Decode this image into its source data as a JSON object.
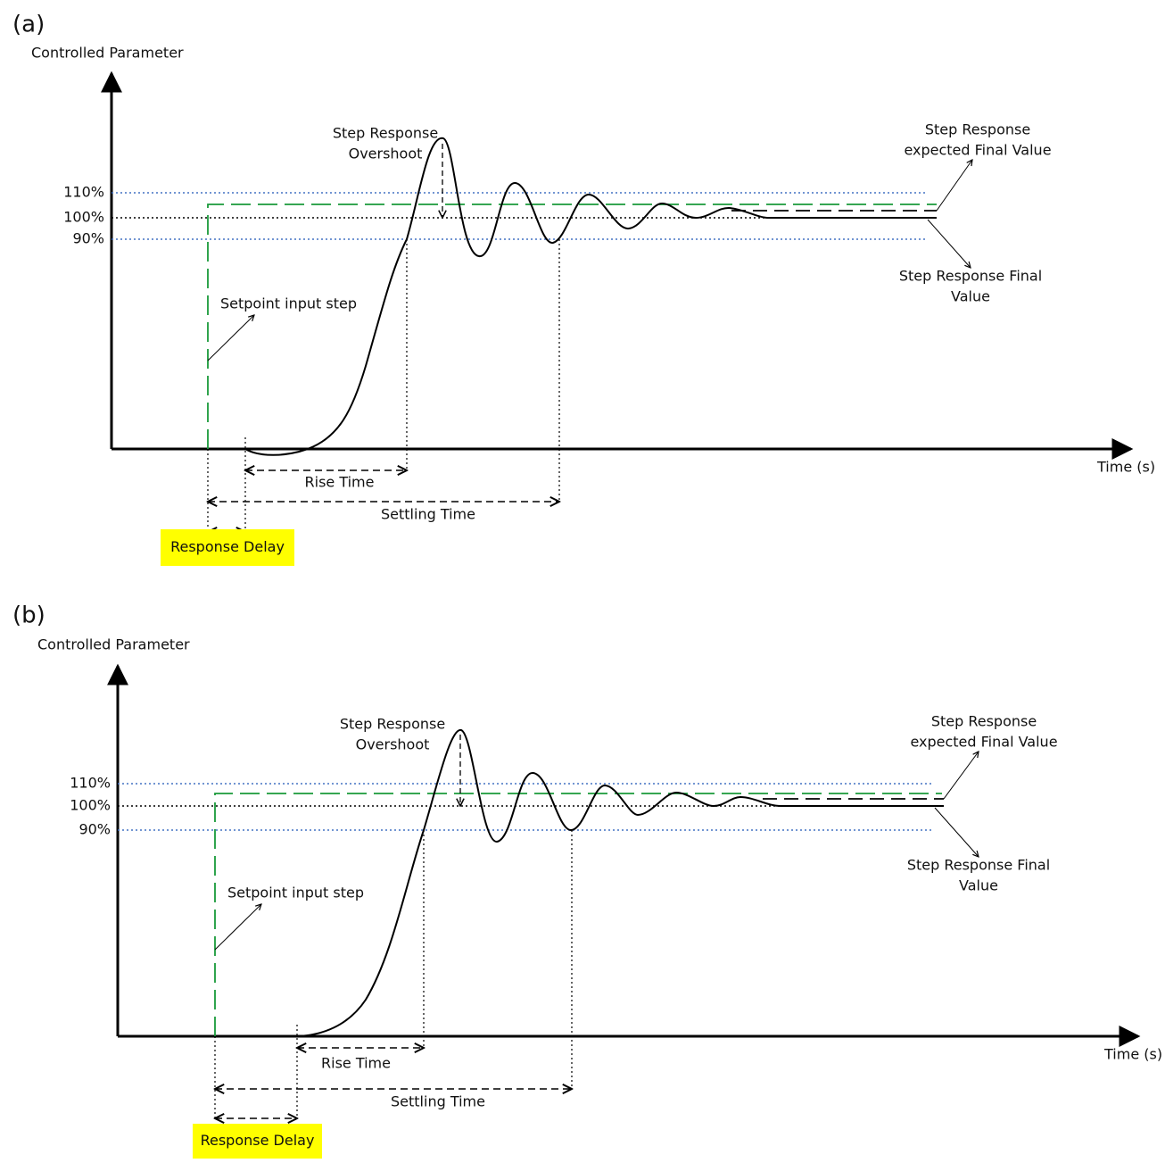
{
  "panels": [
    {
      "label": "(a)",
      "y_axis_label": "Controlled Parameter",
      "x_axis_label": "Time (s)",
      "levels": [
        "110%",
        "100%",
        "90%"
      ],
      "overshoot": [
        "Step Response",
        "Overshoot"
      ],
      "expected_final": [
        "Step Response",
        "expected Final Value"
      ],
      "final_value": [
        "Step Response Final",
        "Value"
      ],
      "setpoint": "Setpoint input step",
      "rise_time": "Rise Time",
      "settling_time": "Settling Time",
      "response_delay": "Response Delay"
    },
    {
      "label": "(b)",
      "y_axis_label": "Controlled Parameter",
      "x_axis_label": "Time (s)",
      "levels": [
        "110%",
        "100%",
        "90%"
      ],
      "overshoot": [
        "Step Response",
        "Overshoot"
      ],
      "expected_final": [
        "Step Response",
        "expected Final Value"
      ],
      "final_value": [
        "Step Response Final",
        "Value"
      ],
      "setpoint": "Setpoint input step",
      "rise_time": "Rise Time",
      "settling_time": "Settling Time",
      "response_delay": "Response Delay"
    }
  ]
}
